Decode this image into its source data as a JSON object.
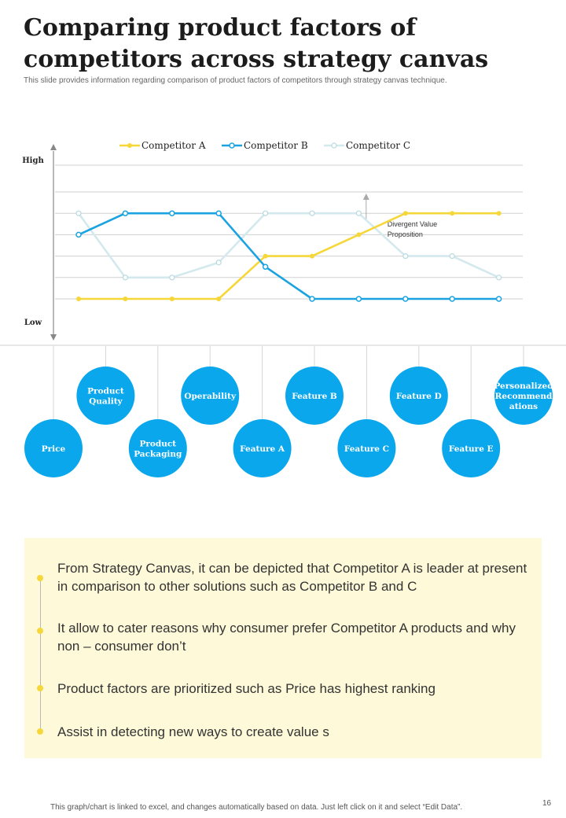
{
  "title": "Comparing product factors of competitors across strategy canvas",
  "subtitle": "This slide provides information regarding comparison of product factors of competitors through strategy canvas technique.",
  "chart_data": {
    "type": "line",
    "categories": [
      "Price",
      "Product Quality",
      "Product Packaging",
      "Operability",
      "Feature A",
      "Feature B",
      "Feature C",
      "Feature D",
      "Feature E",
      "Personalized Recommendations"
    ],
    "category_labels": [
      [
        "Price"
      ],
      [
        "Product",
        "Quality"
      ],
      [
        "Product",
        "Packaging"
      ],
      [
        "Operability"
      ],
      [
        "Feature A"
      ],
      [
        "Feature B"
      ],
      [
        "Feature C"
      ],
      [
        "Feature D"
      ],
      [
        "Feature E"
      ],
      [
        "Personalized",
        "Recommend",
        "ations"
      ]
    ],
    "ylabel_high": "High",
    "ylabel_low": "Low",
    "ylim": [
      1,
      6
    ],
    "grid": true,
    "legend_position": "top",
    "series": [
      {
        "name": "Competitor A",
        "color": "#f5d73a",
        "values": [
          1,
          1,
          1,
          1,
          3,
          3,
          4,
          5,
          5,
          5
        ]
      },
      {
        "name": "Competitor B",
        "color": "#1aa3e0",
        "values": [
          4,
          5,
          5,
          5,
          2.5,
          1,
          1,
          1,
          1,
          1
        ]
      },
      {
        "name": "Competitor C",
        "color": "#d3e9ee",
        "values": [
          5,
          2,
          2,
          2.7,
          5,
          5,
          5,
          3,
          3,
          2
        ]
      }
    ],
    "annotation": {
      "lines": [
        "Divergent Value",
        "Proposition"
      ],
      "category_index": 7
    }
  },
  "colors": {
    "factor_circle": "#0aa7ec",
    "insight_background": "#fef9d8",
    "bullet": "#f5d73a"
  },
  "insights": [
    "From Strategy Canvas, it can be depicted that Competitor A is leader at present in comparison to other solutions such as Competitor B and C",
    "It allow to cater reasons why consumer prefer Competitor A products and why non – consumer don’t",
    "Product factors are prioritized such as Price has highest ranking",
    "Assist in detecting new ways to create value s"
  ],
  "footer_note": "This graph/chart is linked to excel, and changes automatically based on data. Just left click on it and select “Edit Data”.",
  "page_number": "16"
}
